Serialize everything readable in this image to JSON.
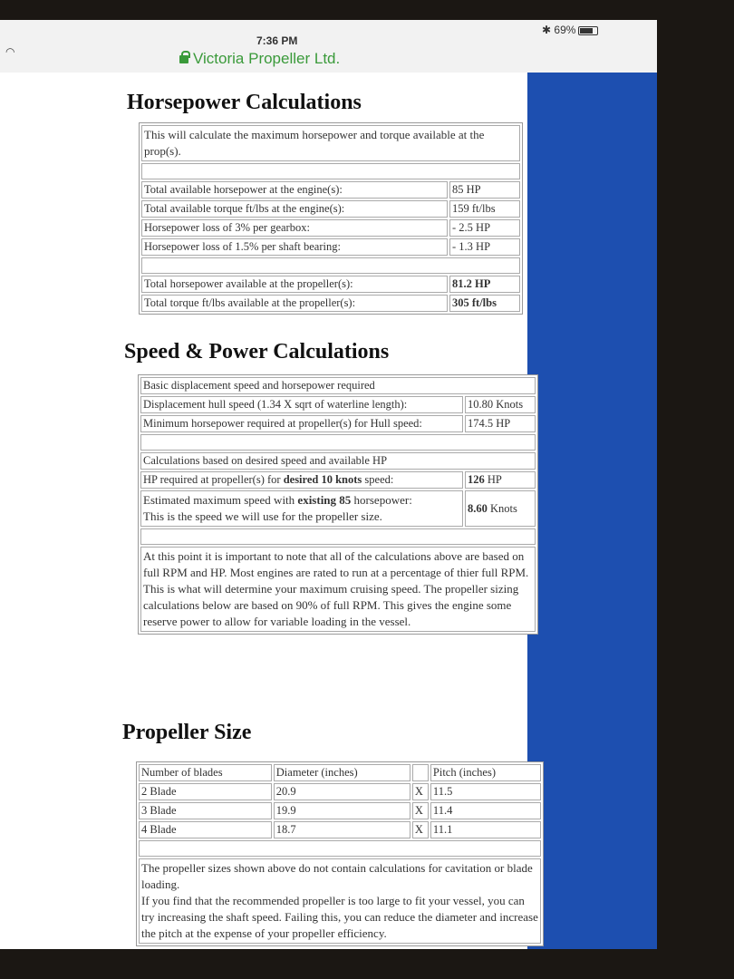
{
  "status_bar": {
    "time": "7:36 PM",
    "site": "Victoria Propeller Ltd.",
    "battery": "69%",
    "battery_level": 0.69,
    "icons": [
      "wifi-icon",
      "lock-icon",
      "bluetooth-icon",
      "battery-icon"
    ]
  },
  "colors": {
    "sidebar": "#1d4fb0",
    "url": "#3a9a3a"
  },
  "horsepower": {
    "title": "Horsepower Calculations",
    "intro": "This will calculate the maximum horsepower and torque available at the prop(s).",
    "rows": [
      {
        "label": "Total available horsepower at the engine(s):",
        "value": "85 HP"
      },
      {
        "label": "Total available torque ft/lbs at the engine(s):",
        "value": "159 ft/lbs"
      },
      {
        "label": "Horsepower loss of 3% per gearbox:",
        "value": "- 2.5 HP"
      },
      {
        "label": "Horsepower loss of 1.5% per shaft bearing:",
        "value": "- 1.3 HP"
      }
    ],
    "totals": [
      {
        "label": "Total horsepower available at the propeller(s):",
        "value": "81.2 HP"
      },
      {
        "label": "Total torque ft/lbs available at the propeller(s):",
        "value": "305 ft/lbs"
      }
    ]
  },
  "speed": {
    "title": "Speed & Power Calculations",
    "basic_heading": "Basic displacement speed and horsepower required",
    "hull_label": "Displacement hull speed (1.34 X sqrt of waterline length):",
    "hull_value": "10.80 Knots",
    "min_label": "Minimum horsepower required at propeller(s) for Hull speed:",
    "min_value": "174.5 HP",
    "desired_heading": "Calculations based on desired speed and available HP",
    "req_pre": "HP required at propeller(s) for ",
    "req_bold": "desired 10 knots",
    "req_post": " speed:",
    "req_value_bold": "126",
    "req_value_unit": " HP",
    "est_pre": "Estimated maximum speed with ",
    "est_bold": "existing 85",
    "est_post": " horsepower:",
    "est_line2": "This is the speed we will use for the propeller size.",
    "est_value_bold": "8.60",
    "est_value_unit": " Knots",
    "note": "At this point it is important to note that all of the calculations above are based on full RPM and HP. Most engines are rated to run at a percentage of thier full RPM. This is what will determine your maximum cruising speed. The propeller sizing calculations below are based on 90% of full RPM. This gives the engine some reserve power to allow for variable loading in the vessel."
  },
  "propeller": {
    "title": "Propeller Size",
    "headers": [
      "Number of blades",
      "Diameter (inches)",
      "",
      "Pitch (inches)"
    ],
    "rows": [
      {
        "blades": "2 Blade",
        "diameter": "20.9",
        "x": "X",
        "pitch": "11.5"
      },
      {
        "blades": "3 Blade",
        "diameter": "19.9",
        "x": "X",
        "pitch": "11.4"
      },
      {
        "blades": "4 Blade",
        "diameter": "18.7",
        "x": "X",
        "pitch": "11.1"
      }
    ],
    "note1": "The propeller sizes shown above do not contain calculations for cavitation or blade loading.",
    "note2": "If you find that the recommended propeller is too large to fit your vessel, you can try increasing the shaft speed. Failing this, you can reduce the diameter and increase the pitch at the expense of your propeller efficiency."
  }
}
